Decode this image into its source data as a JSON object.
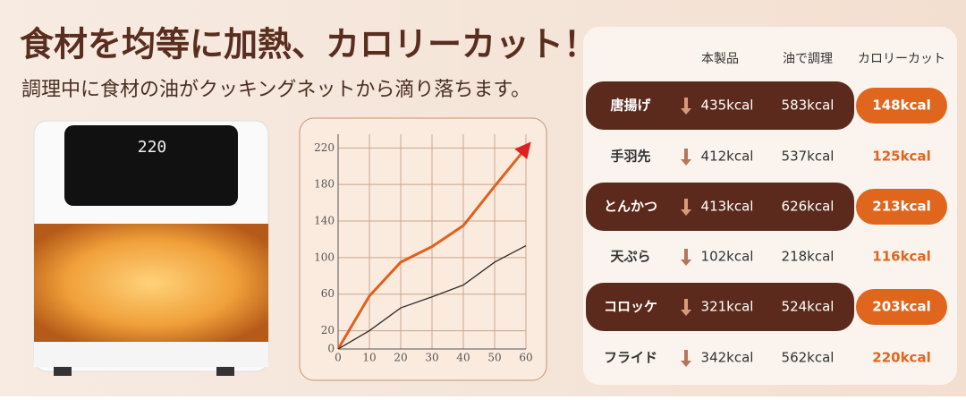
{
  "header": {
    "title": "食材を均等に加熱、カロリーカット！",
    "subtitle": "調理中に食材の油がクッキングネットから滴り落ちます。"
  },
  "fryer": {
    "display": "220"
  },
  "chart_data": {
    "type": "line",
    "x": [
      0,
      10,
      20,
      30,
      40,
      50,
      60
    ],
    "series": [
      {
        "color": "#e0601c",
        "values": [
          0,
          58,
          95,
          112,
          135,
          178,
          220
        ]
      },
      {
        "color": "#2a2a2a",
        "values": [
          0,
          20,
          45,
          57,
          70,
          95,
          113
        ]
      }
    ],
    "xlim": [
      0,
      60
    ],
    "xticks": [
      0,
      10,
      20,
      30,
      40,
      50,
      60
    ],
    "ylim": [
      0,
      235
    ],
    "yticks": [
      0,
      20,
      60,
      100,
      140,
      180,
      220
    ],
    "grid": true
  },
  "table": {
    "columns": [
      "本製品",
      "油で調理",
      "カロリーカット"
    ],
    "rows": [
      [
        "唐揚げ",
        "435kcal",
        "583kcal",
        "148kcal"
      ],
      [
        "手羽先",
        "412kcal",
        "537kcal",
        "125kcal"
      ],
      [
        "とんかつ",
        "413kcal",
        "626kcal",
        "213kcal"
      ],
      [
        "天ぷら",
        "102kcal",
        "218kcal",
        "116kcal"
      ],
      [
        "コロッケ",
        "321kcal",
        "524kcal",
        "203kcal"
      ],
      [
        "フライド",
        "342kcal",
        "562kcal",
        "220kcal"
      ]
    ]
  }
}
